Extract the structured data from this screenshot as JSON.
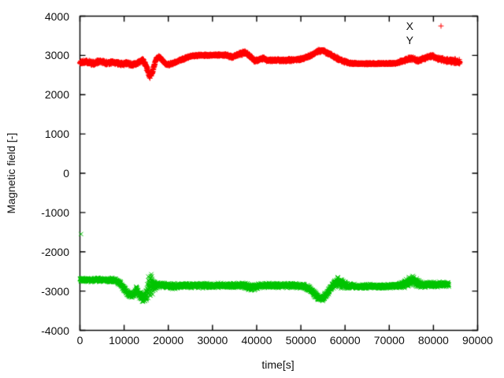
{
  "chart_data": {
    "type": "scatter",
    "title": "",
    "xlabel": "time[s]",
    "ylabel": "Magnetic field [-]",
    "xlim": [
      0,
      90000
    ],
    "ylim": [
      -4000,
      4000
    ],
    "grid": false,
    "legend_position": "top-right-inside",
    "x_ticks": [
      0,
      10000,
      20000,
      30000,
      40000,
      50000,
      60000,
      70000,
      80000,
      90000
    ],
    "x_tick_labels": [
      "0",
      "10000",
      "20000",
      "30000",
      "40000",
      "50000",
      "60000",
      "70000",
      "80000",
      "90000"
    ],
    "y_ticks": [
      -4000,
      -3000,
      -2000,
      -1000,
      0,
      1000,
      2000,
      3000,
      4000
    ],
    "y_tick_labels": [
      "-4000",
      "-3000",
      "-2000",
      "-1000",
      "0",
      "1000",
      "2000",
      "3000",
      "4000"
    ],
    "sample_interval_s": 25,
    "series": [
      {
        "name": "X",
        "color": "#ff0000",
        "marker": "plus",
        "legend_sample_visible": true,
        "band_anchors": [
          [
            0,
            2810,
            60
          ],
          [
            1500,
            2840,
            55
          ],
          [
            3000,
            2790,
            65
          ],
          [
            4500,
            2850,
            55
          ],
          [
            6000,
            2800,
            55
          ],
          [
            7500,
            2830,
            50
          ],
          [
            9000,
            2780,
            55
          ],
          [
            10500,
            2800,
            50
          ],
          [
            12000,
            2760,
            55
          ],
          [
            13200,
            2820,
            50
          ],
          [
            14200,
            2890,
            45
          ],
          [
            15000,
            2720,
            80
          ],
          [
            15800,
            2480,
            90
          ],
          [
            16400,
            2560,
            80
          ],
          [
            17200,
            2900,
            60
          ],
          [
            18000,
            2960,
            45
          ],
          [
            19000,
            2820,
            45
          ],
          [
            19800,
            2760,
            45
          ],
          [
            21000,
            2800,
            40
          ],
          [
            23000,
            2890,
            40
          ],
          [
            25000,
            2980,
            35
          ],
          [
            27000,
            3000,
            30
          ],
          [
            30000,
            3005,
            30
          ],
          [
            33000,
            3010,
            35
          ],
          [
            34500,
            2955,
            45
          ],
          [
            36000,
            3030,
            50
          ],
          [
            37200,
            3075,
            60
          ],
          [
            38500,
            2990,
            55
          ],
          [
            39500,
            2860,
            50
          ],
          [
            40500,
            2890,
            45
          ],
          [
            41500,
            2930,
            45
          ],
          [
            42500,
            2870,
            40
          ],
          [
            44000,
            2880,
            40
          ],
          [
            46000,
            2870,
            40
          ],
          [
            48000,
            2885,
            40
          ],
          [
            50000,
            2905,
            40
          ],
          [
            52000,
            2990,
            40
          ],
          [
            54000,
            3110,
            45
          ],
          [
            55000,
            3120,
            50
          ],
          [
            56500,
            3040,
            50
          ],
          [
            58000,
            2930,
            55
          ],
          [
            59500,
            2860,
            50
          ],
          [
            61000,
            2805,
            35
          ],
          [
            63000,
            2790,
            28
          ],
          [
            66000,
            2790,
            25
          ],
          [
            69000,
            2792,
            25
          ],
          [
            71500,
            2800,
            30
          ],
          [
            73500,
            2880,
            50
          ],
          [
            75000,
            2925,
            55
          ],
          [
            76500,
            2860,
            45
          ],
          [
            78000,
            2930,
            50
          ],
          [
            79500,
            2985,
            50
          ],
          [
            81000,
            2920,
            50
          ],
          [
            82500,
            2880,
            55
          ],
          [
            84000,
            2865,
            65
          ],
          [
            86000,
            2840,
            65
          ]
        ],
        "outliers": []
      },
      {
        "name": "Y",
        "color": "#00c400",
        "marker": "cross",
        "legend_sample_visible": false,
        "band_anchors": [
          [
            0,
            -2710,
            60
          ],
          [
            2000,
            -2720,
            60
          ],
          [
            4000,
            -2705,
            60
          ],
          [
            6000,
            -2725,
            60
          ],
          [
            8000,
            -2720,
            65
          ],
          [
            9200,
            -2800,
            70
          ],
          [
            10200,
            -2980,
            80
          ],
          [
            11200,
            -3090,
            85
          ],
          [
            12200,
            -3080,
            90
          ],
          [
            12800,
            -2940,
            100
          ],
          [
            13400,
            -3080,
            100
          ],
          [
            14200,
            -3190,
            120
          ],
          [
            15000,
            -3120,
            160
          ],
          [
            15600,
            -2850,
            380
          ],
          [
            16200,
            -2780,
            360
          ],
          [
            16800,
            -2880,
            160
          ],
          [
            17500,
            -2850,
            80
          ],
          [
            19000,
            -2855,
            75
          ],
          [
            21000,
            -2875,
            85
          ],
          [
            23000,
            -2855,
            70
          ],
          [
            25000,
            -2860,
            70
          ],
          [
            27000,
            -2855,
            70
          ],
          [
            29000,
            -2870,
            80
          ],
          [
            31000,
            -2855,
            70
          ],
          [
            33000,
            -2865,
            70
          ],
          [
            35000,
            -2860,
            70
          ],
          [
            37000,
            -2860,
            75
          ],
          [
            39000,
            -2915,
            105
          ],
          [
            40500,
            -2865,
            70
          ],
          [
            42500,
            -2855,
            70
          ],
          [
            44500,
            -2860,
            70
          ],
          [
            46500,
            -2860,
            70
          ],
          [
            48500,
            -2855,
            70
          ],
          [
            50500,
            -2870,
            70
          ],
          [
            52200,
            -2960,
            85
          ],
          [
            53800,
            -3150,
            90
          ],
          [
            55000,
            -3185,
            85
          ],
          [
            56300,
            -3010,
            95
          ],
          [
            57400,
            -2830,
            130
          ],
          [
            58400,
            -2760,
            160
          ],
          [
            59400,
            -2810,
            140
          ],
          [
            60500,
            -2875,
            95
          ],
          [
            62000,
            -2875,
            70
          ],
          [
            64000,
            -2880,
            60
          ],
          [
            66000,
            -2872,
            60
          ],
          [
            68000,
            -2880,
            60
          ],
          [
            70000,
            -2872,
            60
          ],
          [
            72000,
            -2875,
            65
          ],
          [
            73800,
            -2810,
            120
          ],
          [
            75200,
            -2735,
            160
          ],
          [
            76400,
            -2805,
            115
          ],
          [
            77800,
            -2850,
            85
          ],
          [
            79500,
            -2840,
            80
          ],
          [
            81500,
            -2830,
            80
          ],
          [
            83500,
            -2825,
            70
          ]
        ],
        "outliers": [
          [
            250,
            -1550
          ]
        ]
      }
    ],
    "legend_entries": [
      {
        "label": "X"
      },
      {
        "label": "Y"
      }
    ]
  }
}
